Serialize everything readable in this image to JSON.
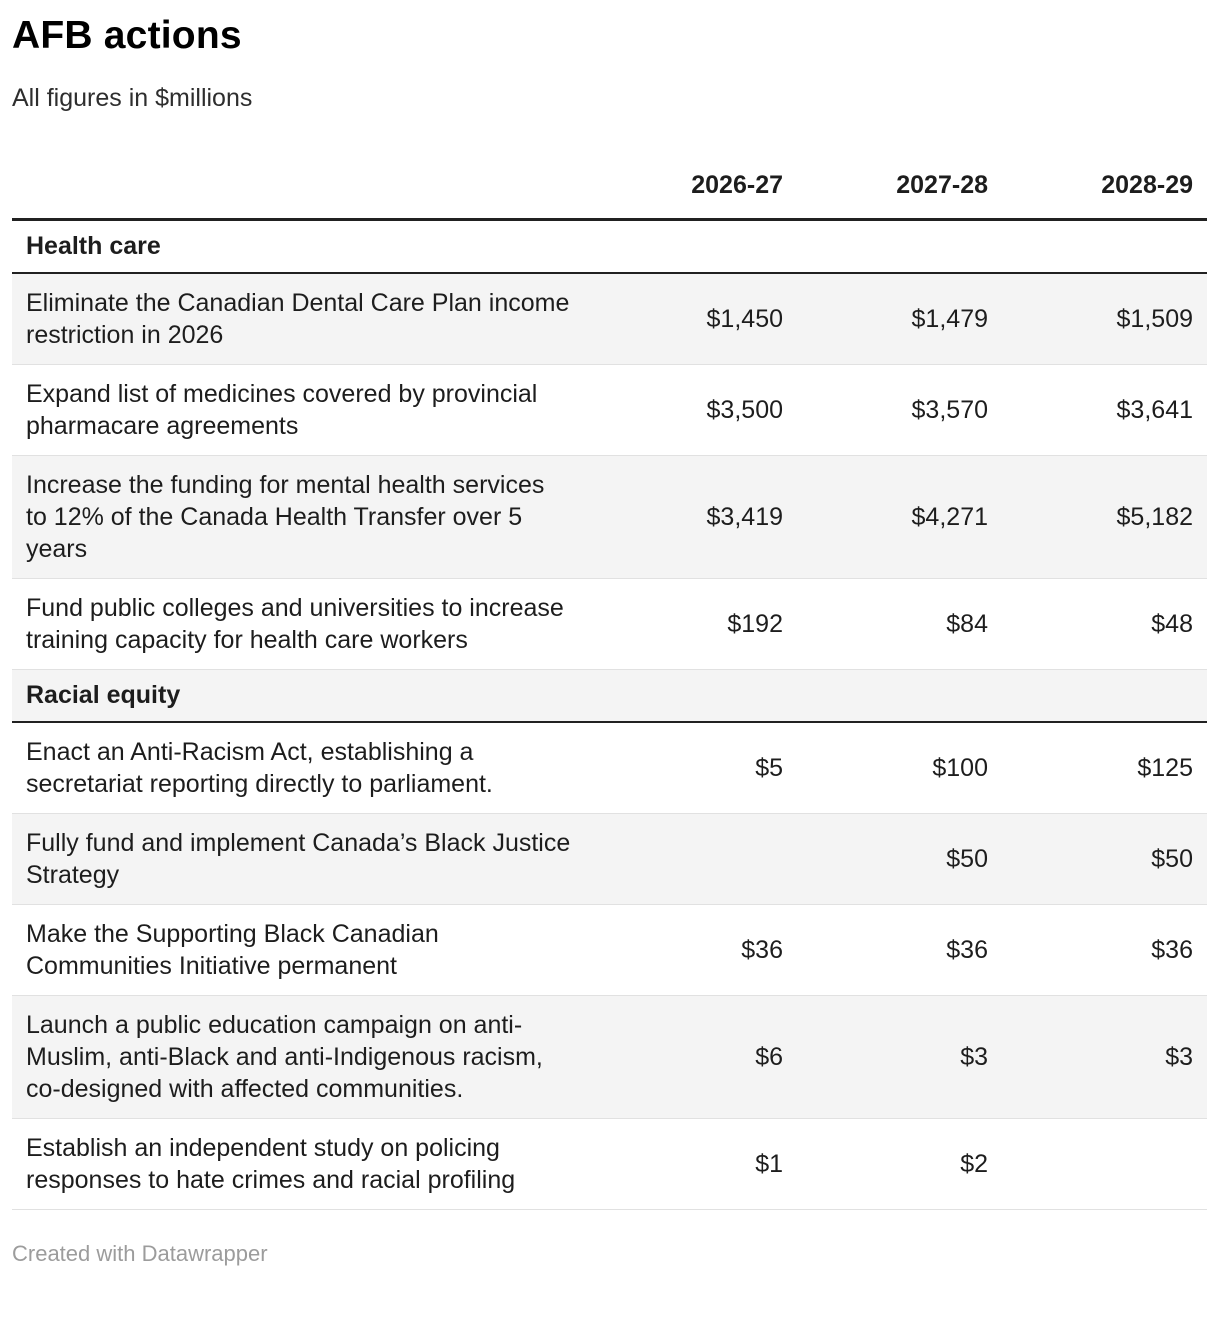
{
  "title": "AFB actions",
  "subtitle": "All figures in $millions",
  "footer": {
    "attribution": "Created with Datawrapper"
  },
  "colors": {
    "zebra_row": "#f4f4f4",
    "dark_border": "#212121",
    "light_border": "#e1e1e1",
    "body_text": "#1d1d1d",
    "footer_text": "#9c9c9c"
  },
  "chart_data": {
    "type": "table",
    "title": "AFB actions",
    "subtitle": "All figures in $millions",
    "columns": [
      "2026-27",
      "2027-28",
      "2028-29"
    ],
    "sections": [
      {
        "label": "Health care",
        "rows": [
          {
            "label": "Eliminate the Canadian Dental Care Plan income restriction in 2026",
            "values": [
              "$1,450",
              "$1,479",
              "$1,509"
            ]
          },
          {
            "label": "Expand list of medicines covered by provincial pharmacare agreements",
            "values": [
              "$3,500",
              "$3,570",
              "$3,641"
            ]
          },
          {
            "label": "Increase the funding for mental health services to 12% of the Canada Health Transfer over 5 years",
            "values": [
              "$3,419",
              "$4,271",
              "$5,182"
            ]
          },
          {
            "label": "Fund public colleges and universities to increase training capacity for health care workers",
            "values": [
              "$192",
              "$84",
              "$48"
            ]
          }
        ]
      },
      {
        "label": "Racial equity",
        "rows": [
          {
            "label": "Enact an Anti-Racism Act, establishing a secretariat reporting directly to parliament.",
            "values": [
              "$5",
              "$100",
              "$125"
            ]
          },
          {
            "label": "Fully fund and implement Canada’s Black Justice Strategy",
            "values": [
              "",
              "$50",
              "$50"
            ]
          },
          {
            "label": "Make the Supporting Black Canadian Communities Initiative permanent",
            "values": [
              "$36",
              "$36",
              "$36"
            ]
          },
          {
            "label": "Launch a public education campaign on anti-Muslim, anti-Black and anti-Indigenous racism, co-designed with affected communities.",
            "values": [
              "$6",
              "$3",
              "$3"
            ]
          },
          {
            "label": "Establish an independent study on policing responses to hate crimes and racial profiling",
            "values": [
              "$1",
              "$2",
              ""
            ]
          }
        ]
      }
    ],
    "units": "$millions",
    "layout": {
      "value_alignment": "right",
      "zebra_striping": true,
      "grid": "horizontal-rules"
    }
  }
}
